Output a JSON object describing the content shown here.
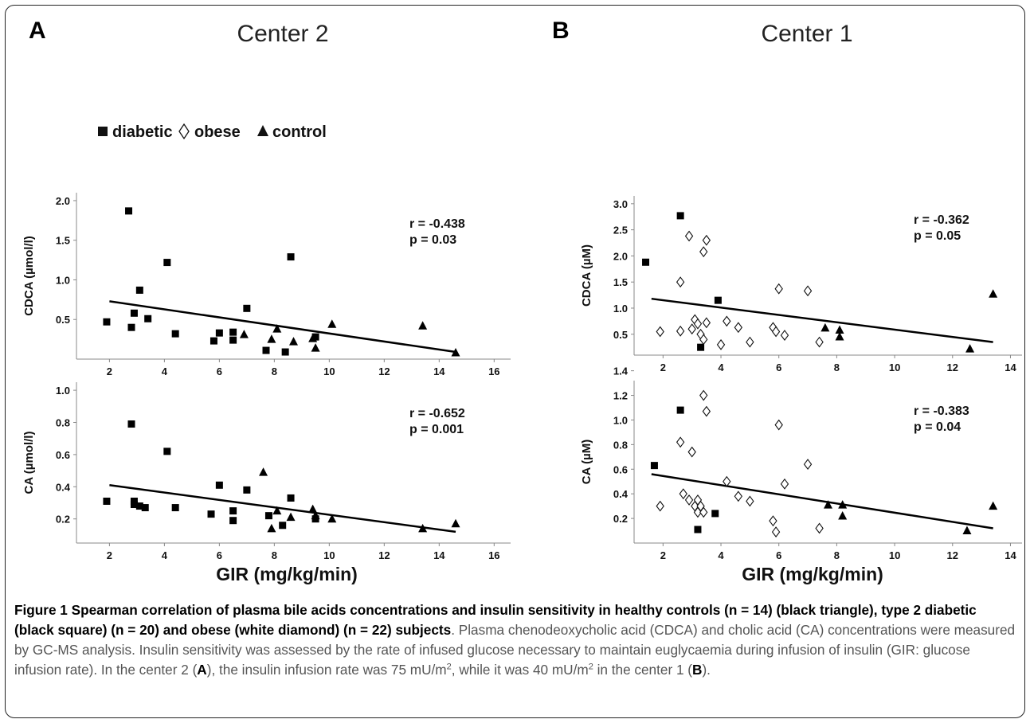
{
  "panels": [
    {
      "letter": "A",
      "center_title": "Center 2",
      "xlabel": "GIR (mg/kg/min)",
      "legend": [
        "diabetic",
        "obese",
        "control"
      ]
    },
    {
      "letter": "B",
      "center_title": "Center 1",
      "xlabel": "GIR (mg/kg/min)"
    }
  ],
  "chart_data": [
    {
      "type": "scatter",
      "panel": "A",
      "ylabel": "CDCA (µmol/l)",
      "xlim": [
        0.8,
        16.6
      ],
      "ylim": [
        0,
        2.1
      ],
      "grid": false,
      "xticks": [
        "2",
        "4",
        "6",
        "8",
        "10",
        "12",
        "14",
        "16"
      ],
      "xtick_values": [
        2,
        4,
        6,
        8,
        10,
        12,
        14,
        16
      ],
      "yticks": [
        "0.5",
        "1.0",
        "1.5",
        "2.0"
      ],
      "ytick_values": [
        0.5,
        1.0,
        1.5,
        2.0
      ],
      "annotation": [
        "r = -0.438",
        "p = 0.03"
      ],
      "series": [
        {
          "name": "diabetic",
          "marker": "square",
          "points": [
            [
              1.9,
              0.47
            ],
            [
              2.7,
              1.87
            ],
            [
              2.8,
              0.4
            ],
            [
              2.9,
              0.58
            ],
            [
              3.1,
              0.87
            ],
            [
              3.4,
              0.51
            ],
            [
              4.1,
              1.22
            ],
            [
              4.4,
              0.32
            ],
            [
              5.8,
              0.23
            ],
            [
              6.0,
              0.33
            ],
            [
              6.5,
              0.24
            ],
            [
              6.5,
              0.34
            ],
            [
              7.0,
              0.64
            ],
            [
              7.7,
              0.11
            ],
            [
              8.4,
              0.09
            ],
            [
              8.6,
              1.29
            ],
            [
              9.5,
              0.28
            ]
          ]
        },
        {
          "name": "control",
          "marker": "triangle",
          "points": [
            [
              6.9,
              0.31
            ],
            [
              7.9,
              0.25
            ],
            [
              8.1,
              0.38
            ],
            [
              8.7,
              0.22
            ],
            [
              9.4,
              0.26
            ],
            [
              9.5,
              0.14
            ],
            [
              10.1,
              0.44
            ],
            [
              13.4,
              0.42
            ],
            [
              14.6,
              0.08
            ]
          ]
        }
      ],
      "fit_line": [
        [
          2.0,
          0.73
        ],
        [
          14.6,
          0.09
        ]
      ]
    },
    {
      "type": "scatter",
      "panel": "A",
      "ylabel": "CA (µmol/l)",
      "xlim": [
        0.8,
        16.6
      ],
      "ylim": [
        0.05,
        1.05
      ],
      "grid": false,
      "xticks": [
        "2",
        "4",
        "6",
        "8",
        "10",
        "12",
        "14",
        "16"
      ],
      "xtick_values": [
        2,
        4,
        6,
        8,
        10,
        12,
        14,
        16
      ],
      "yticks": [
        "0.2",
        "0.4",
        "0.6",
        "0.8",
        "1.0"
      ],
      "ytick_values": [
        0.2,
        0.4,
        0.6,
        0.8,
        1.0
      ],
      "annotation": [
        "r = -0.652",
        "p = 0.001"
      ],
      "series": [
        {
          "name": "diabetic",
          "marker": "square",
          "points": [
            [
              1.9,
              0.31
            ],
            [
              2.8,
              0.79
            ],
            [
              2.9,
              0.31
            ],
            [
              2.9,
              0.29
            ],
            [
              3.1,
              0.28
            ],
            [
              3.3,
              0.27
            ],
            [
              4.1,
              0.62
            ],
            [
              4.4,
              0.27
            ],
            [
              5.7,
              0.23
            ],
            [
              6.0,
              0.41
            ],
            [
              6.5,
              0.19
            ],
            [
              6.5,
              0.25
            ],
            [
              7.0,
              0.38
            ],
            [
              7.8,
              0.22
            ],
            [
              8.3,
              0.16
            ],
            [
              8.6,
              0.33
            ],
            [
              9.5,
              0.2
            ]
          ]
        },
        {
          "name": "control",
          "marker": "triangle",
          "points": [
            [
              7.6,
              0.49
            ],
            [
              7.9,
              0.14
            ],
            [
              8.1,
              0.25
            ],
            [
              8.6,
              0.21
            ],
            [
              9.4,
              0.26
            ],
            [
              9.5,
              0.22
            ],
            [
              10.1,
              0.2
            ],
            [
              13.4,
              0.14
            ],
            [
              14.6,
              0.17
            ]
          ]
        }
      ],
      "fit_line": [
        [
          2.0,
          0.41
        ],
        [
          14.6,
          0.12
        ]
      ]
    },
    {
      "type": "scatter",
      "panel": "B",
      "ylabel": "CDCA (µM)",
      "xlim": [
        1.0,
        14.4
      ],
      "ylim": [
        0.1,
        3.15
      ],
      "grid": false,
      "xticks": [
        "2",
        "4",
        "6",
        "8",
        "10",
        "12",
        "14"
      ],
      "xtick_values": [
        2,
        4,
        6,
        8,
        10,
        12,
        14
      ],
      "yticks": [
        "0.5",
        "1.0",
        "1.5",
        "2.0",
        "2.5",
        "3.0"
      ],
      "ytick_values": [
        0.5,
        1.0,
        1.5,
        2.0,
        2.5,
        3.0
      ],
      "annotation": [
        "r = -0.362",
        "p = 0.05"
      ],
      "series": [
        {
          "name": "diabetic",
          "marker": "square",
          "points": [
            [
              1.4,
              1.88
            ],
            [
              2.6,
              2.77
            ],
            [
              3.3,
              0.25
            ],
            [
              3.9,
              1.15
            ]
          ]
        },
        {
          "name": "obese",
          "marker": "diamond",
          "points": [
            [
              1.9,
              0.55
            ],
            [
              2.6,
              1.5
            ],
            [
              2.6,
              0.56
            ],
            [
              2.9,
              2.38
            ],
            [
              3.0,
              0.6
            ],
            [
              3.1,
              0.78
            ],
            [
              3.2,
              0.7
            ],
            [
              3.3,
              0.5
            ],
            [
              3.4,
              0.4
            ],
            [
              3.4,
              2.08
            ],
            [
              3.5,
              2.3
            ],
            [
              3.5,
              0.72
            ],
            [
              4.0,
              0.3
            ],
            [
              4.2,
              0.75
            ],
            [
              4.6,
              0.63
            ],
            [
              5.0,
              0.35
            ],
            [
              5.8,
              0.63
            ],
            [
              5.9,
              0.55
            ],
            [
              6.0,
              1.37
            ],
            [
              6.2,
              0.48
            ],
            [
              7.0,
              1.33
            ],
            [
              7.4,
              0.35
            ]
          ]
        },
        {
          "name": "control",
          "marker": "triangle",
          "points": [
            [
              7.6,
              0.62
            ],
            [
              8.1,
              0.58
            ],
            [
              8.1,
              0.45
            ],
            [
              12.6,
              0.22
            ],
            [
              13.4,
              1.27
            ]
          ]
        }
      ],
      "fit_line": [
        [
          1.6,
          1.18
        ],
        [
          13.4,
          0.35
        ]
      ]
    },
    {
      "type": "scatter",
      "panel": "B",
      "ylabel": "CA (µM)",
      "xlim": [
        1.0,
        14.4
      ],
      "ylim": [
        0.0,
        1.32
      ],
      "grid": false,
      "xticks": [
        "2",
        "4",
        "6",
        "8",
        "10",
        "12",
        "14"
      ],
      "xtick_values": [
        2,
        4,
        6,
        8,
        10,
        12,
        14
      ],
      "yticks": [
        "0.2",
        "0.4",
        "0.6",
        "0.8",
        "1.0",
        "1.2",
        "1.4"
      ],
      "ytick_values": [
        0.2,
        0.4,
        0.6,
        0.8,
        1.0,
        1.2,
        1.4
      ],
      "annotation": [
        "r = -0.383",
        "p = 0.04"
      ],
      "series": [
        {
          "name": "diabetic",
          "marker": "square",
          "points": [
            [
              1.7,
              0.63
            ],
            [
              2.6,
              1.08
            ],
            [
              3.2,
              0.11
            ],
            [
              3.8,
              0.24
            ]
          ]
        },
        {
          "name": "obese",
          "marker": "diamond",
          "points": [
            [
              1.9,
              0.3
            ],
            [
              2.6,
              0.82
            ],
            [
              2.7,
              0.4
            ],
            [
              2.9,
              0.35
            ],
            [
              3.0,
              0.74
            ],
            [
              3.1,
              0.3
            ],
            [
              3.2,
              0.35
            ],
            [
              3.2,
              0.25
            ],
            [
              3.3,
              0.3
            ],
            [
              3.4,
              0.25
            ],
            [
              3.4,
              1.2
            ],
            [
              3.5,
              1.07
            ],
            [
              4.2,
              0.5
            ],
            [
              4.6,
              0.38
            ],
            [
              5.0,
              0.34
            ],
            [
              5.8,
              0.18
            ],
            [
              5.9,
              0.09
            ],
            [
              6.0,
              0.96
            ],
            [
              6.2,
              0.48
            ],
            [
              7.0,
              0.64
            ],
            [
              7.4,
              0.12
            ]
          ]
        },
        {
          "name": "control",
          "marker": "triangle",
          "points": [
            [
              7.7,
              0.31
            ],
            [
              8.2,
              0.31
            ],
            [
              8.2,
              0.22
            ],
            [
              12.5,
              0.1
            ],
            [
              13.4,
              0.3
            ]
          ]
        }
      ],
      "fit_line": [
        [
          1.6,
          0.56
        ],
        [
          13.4,
          0.12
        ]
      ]
    }
  ],
  "caption": {
    "bold": "Figure 1 Spearman correlation of plasma bile acids concentrations and insulin sensitivity in healthy controls (n = 14) (black triangle), type 2 diabetic (black square) (n = 20) and obese (white diamond) (n = 22) subjects",
    "t1": ". Plasma chenodeoxycholic acid (CDCA) and cholic acid (CA) concentrations were measured by GC-MS analysis. Insulin sensitivity was assessed by the rate of infused glucose necessary to maintain euglycaemia during infusion of insulin (GIR: glucose infusion rate). In the center 2 (",
    "letterA": "A",
    "t2": "), the insulin infusion rate was 75 mU/m",
    "sup": "2",
    "t3": ", while it was 40 mU/m",
    "sup2": "2",
    "t4": " in the center 1 (",
    "letterB": "B",
    "t5": ")."
  }
}
